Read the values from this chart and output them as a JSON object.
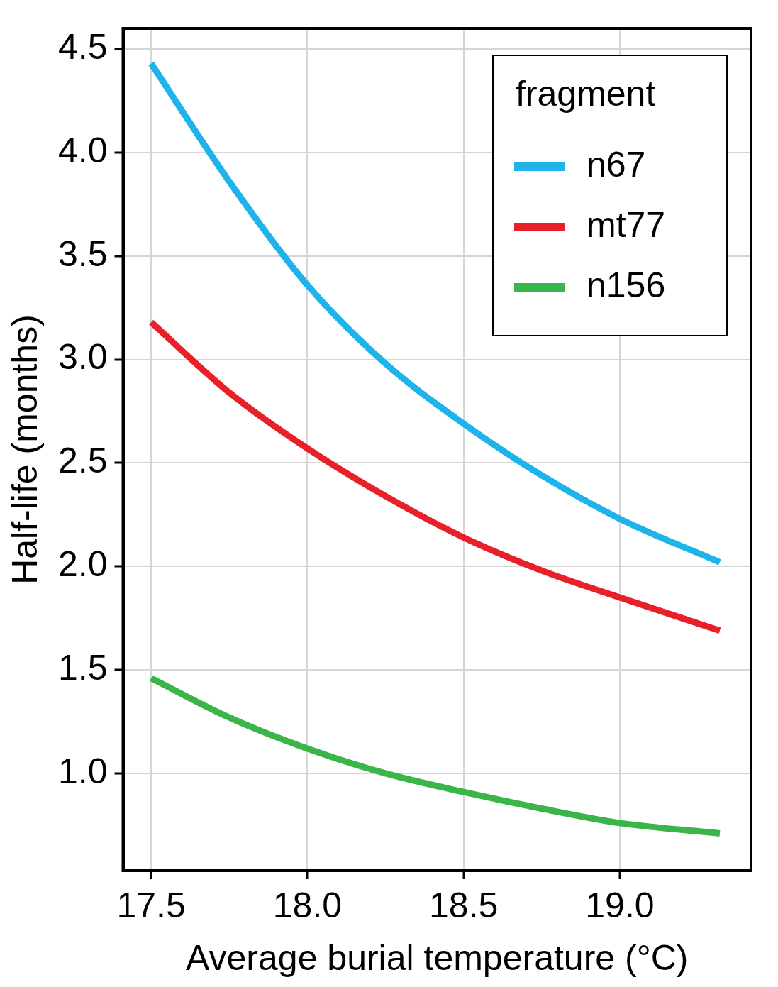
{
  "chart_data": {
    "type": "line",
    "xlabel": "Average burial temperature (°C)",
    "ylabel": "Half-life (months)",
    "legend_title": "fragment",
    "xlim": [
      17.41,
      19.42
    ],
    "xticks": [
      {
        "value": 17.5,
        "label": "17.5"
      },
      {
        "value": 18,
        "label": "18.0"
      },
      {
        "value": 18.5,
        "label": "18.5"
      },
      {
        "value": 19,
        "label": "19.0"
      }
    ],
    "ylim": [
      0.53,
      4.6
    ],
    "yticks": [
      {
        "value": 1,
        "label": "1.0"
      },
      {
        "value": 1.5,
        "label": "1.5"
      },
      {
        "value": 2,
        "label": "2.0"
      },
      {
        "value": 2.5,
        "label": "2.5"
      },
      {
        "value": 3,
        "label": "3.0"
      },
      {
        "value": 3.5,
        "label": "3.5"
      },
      {
        "value": 4,
        "label": "4.0"
      },
      {
        "value": 4.5,
        "label": "4.5"
      }
    ],
    "x": [
      17.5,
      17.75,
      18,
      18.25,
      18.5,
      18.75,
      19,
      19.32
    ],
    "series": [
      {
        "name": "n67",
        "color": "#1eb4eb",
        "values": [
          4.43,
          3.86,
          3.36,
          2.98,
          2.69,
          2.44,
          2.23,
          2.02
        ]
      },
      {
        "name": "mt77",
        "color": "#e8202a",
        "values": [
          3.18,
          2.84,
          2.57,
          2.34,
          2.14,
          1.98,
          1.85,
          1.69
        ]
      },
      {
        "name": "n156",
        "color": "#3ab54a",
        "values": [
          1.46,
          1.27,
          1.12,
          1.0,
          0.91,
          0.83,
          0.76,
          0.71
        ]
      }
    ],
    "grid": true,
    "legend": "top right",
    "marker": "none",
    "line_style": "solid"
  }
}
